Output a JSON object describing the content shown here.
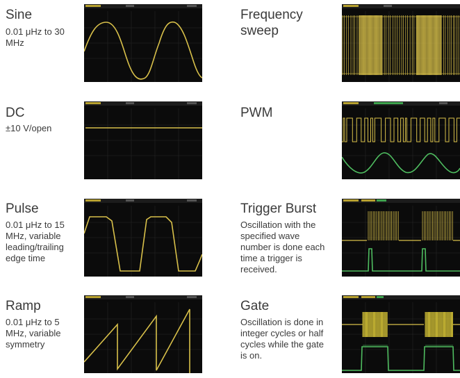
{
  "waveforms": [
    {
      "title": "Sine",
      "description": "0.01 μHz to 30 MHz",
      "icon": "sine-waveform-display"
    },
    {
      "title": "DC",
      "description": "±10 V/open",
      "icon": "dc-waveform-display"
    },
    {
      "title": "Pulse",
      "description": "0.01 μHz to 15 MHz, variable leading/trailing edge time",
      "icon": "pulse-waveform-display"
    },
    {
      "title": "Ramp",
      "description": "0.01 μHz to 5 MHz, variable symmetry",
      "icon": "ramp-waveform-display"
    },
    {
      "title": "Frequency sweep",
      "description": "",
      "icon": "frequency-sweep-display"
    },
    {
      "title": "PWM",
      "description": "",
      "icon": "pwm-waveform-display"
    },
    {
      "title": "Trigger Burst",
      "description": "Oscillation with the specified wave number is done each time a trigger is received.",
      "icon": "trigger-burst-display"
    },
    {
      "title": "Gate",
      "description": "Oscillation is done in integer cycles or half cycles while the gate is on.",
      "icon": "gate-waveform-display"
    }
  ],
  "colors": {
    "trace_yellow": "#d8c04a",
    "trace_green": "#4fbd60",
    "screen_bg": "#0b0b0b",
    "grid": "#2a2a2a"
  }
}
